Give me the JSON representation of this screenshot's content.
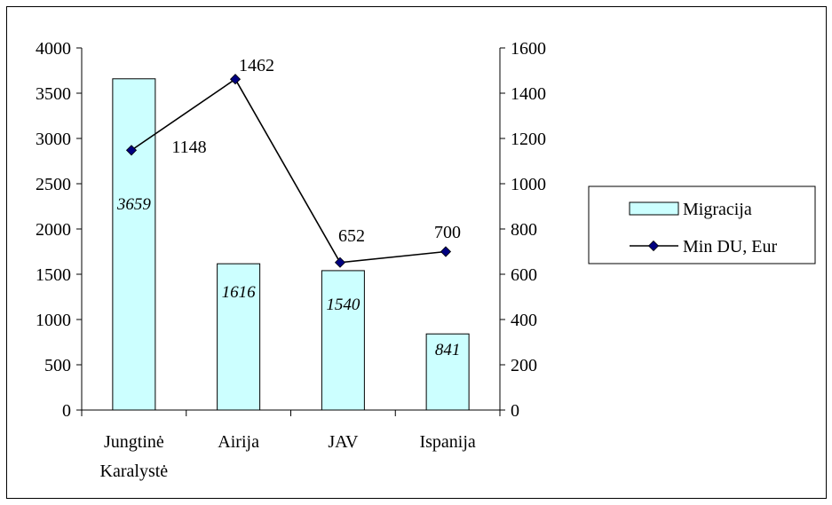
{
  "chart_data": {
    "type": "bar",
    "title": "",
    "categories": [
      [
        "Jungtinė",
        "Karalystė"
      ],
      [
        "Airija"
      ],
      [
        "JAV"
      ],
      [
        "Ispanija"
      ]
    ],
    "series": [
      {
        "name": "Migracija",
        "type": "bar",
        "axis": "left",
        "values": [
          3659,
          1616,
          1540,
          841
        ],
        "labels": [
          "3659",
          "1616",
          "1540",
          "841"
        ],
        "color": "#ccffff"
      },
      {
        "name": "Min DU,  Eur",
        "type": "line",
        "axis": "right",
        "values": [
          1148,
          1462,
          652,
          700
        ],
        "labels": [
          "1148",
          "1462",
          "652",
          "700"
        ],
        "color": "#000080"
      }
    ],
    "y_left": {
      "ylim": [
        0,
        4000
      ],
      "ticks": [
        0,
        500,
        1000,
        1500,
        2000,
        2500,
        3000,
        3500,
        4000
      ]
    },
    "y_right": {
      "ylim": [
        0,
        1600
      ],
      "ticks": [
        0,
        200,
        400,
        600,
        800,
        1000,
        1200,
        1400,
        1600
      ]
    },
    "grid": false,
    "legend_position": "right"
  }
}
